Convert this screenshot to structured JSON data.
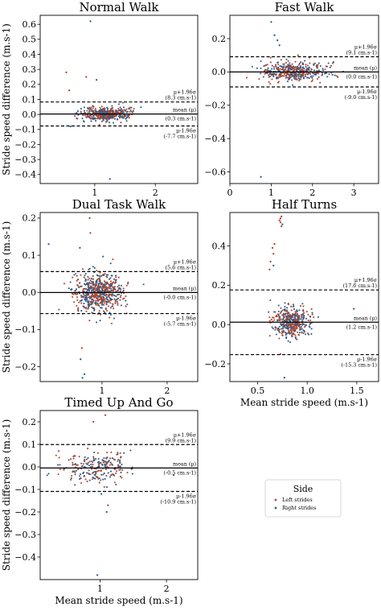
{
  "colors": {
    "left": "#b2472e",
    "right": "#2f5d8a",
    "line": "#000000",
    "text": "#000000"
  },
  "legend": {
    "title": "Side",
    "items": [
      {
        "label": "Left strides",
        "color_key": "left"
      },
      {
        "label": "Right strides",
        "color_key": "right"
      }
    ],
    "placement": "lower-right"
  },
  "chart_data": [
    {
      "type": "scatter",
      "title": "Normal Walk",
      "xlabel": "",
      "ylabel": "Stride speed difference (m.s-1)",
      "xlim": [
        0.1,
        2.7
      ],
      "ylim": [
        -0.46,
        0.66
      ],
      "xticks": [
        1,
        2
      ],
      "xtick_labels": [
        "1",
        "2"
      ],
      "yticks": [
        -0.4,
        -0.3,
        -0.2,
        -0.1,
        0.0,
        0.1,
        0.2,
        0.3,
        0.4,
        0.5,
        0.6
      ],
      "ytick_labels": [
        "−0.4",
        "−0.3",
        "−0.2",
        "−0.1",
        "0.0",
        "0.1",
        "0.2",
        "0.3",
        "0.4",
        "0.5",
        "0.6"
      ],
      "mean": 0.003,
      "upper_loa": 0.083,
      "lower_loa": -0.077,
      "annotations": {
        "upper_label": "μ+1.96σ",
        "upper_value": "(8.3 cm.s-1)",
        "mean_label": "mean (μ)",
        "mean_value": "(0.3 cm.s-1)",
        "lower_label": "μ-1.96σ",
        "lower_value": "(-7.7 cm.s-1)"
      },
      "cloud": {
        "x_mean": 1.2,
        "x_sd": 0.2,
        "y_sd": 0.022,
        "count": 440
      },
      "outliers": [
        {
          "x": 0.93,
          "y": 0.62,
          "side": "right"
        },
        {
          "x": 1.25,
          "y": -0.43,
          "side": "right"
        },
        {
          "x": 0.53,
          "y": 0.28,
          "side": "left"
        },
        {
          "x": 1.03,
          "y": 0.23,
          "side": "right"
        },
        {
          "x": 0.86,
          "y": 0.25,
          "side": "left"
        },
        {
          "x": 0.6,
          "y": -0.08,
          "side": "right"
        },
        {
          "x": 0.58,
          "y": 0.16,
          "side": "left"
        }
      ]
    },
    {
      "type": "scatter",
      "title": "Fast Walk",
      "xlabel": "",
      "ylabel": "",
      "xlim": [
        0.0,
        3.6
      ],
      "ylim": [
        -0.67,
        0.34
      ],
      "xticks": [
        0,
        1,
        2,
        3
      ],
      "xtick_labels": [
        "0",
        "1",
        "2",
        "3"
      ],
      "yticks": [
        -0.6,
        -0.4,
        -0.2,
        0.0,
        0.2
      ],
      "ytick_labels": [
        "−0.6",
        "−0.4",
        "−0.2",
        "0.0",
        "0.2"
      ],
      "mean": 0.0,
      "upper_loa": 0.091,
      "lower_loa": -0.09,
      "annotations": {
        "upper_label": "μ+1.96σ",
        "upper_value": "(9.1 cm.s-1)",
        "mean_label": "mean (μ)",
        "mean_value": "(0.0 cm.s-1)",
        "lower_label": "μ-1.96σ",
        "lower_value": "(-9.0 cm.s-1)"
      },
      "cloud": {
        "x_mean": 1.55,
        "x_sd": 0.38,
        "y_sd": 0.03,
        "count": 430
      },
      "outliers": [
        {
          "x": 1.0,
          "y": 0.3,
          "side": "right"
        },
        {
          "x": 0.75,
          "y": -0.63,
          "side": "right"
        },
        {
          "x": 1.15,
          "y": 0.19,
          "side": "right"
        },
        {
          "x": 1.2,
          "y": 0.16,
          "side": "right"
        },
        {
          "x": 1.08,
          "y": 0.22,
          "side": "right"
        },
        {
          "x": 1.65,
          "y": 0.1,
          "side": "left"
        }
      ]
    },
    {
      "type": "scatter",
      "title": "Dual Task Walk",
      "xlabel": "",
      "ylabel": "Stride speed difference (m.s-1)",
      "xlim": [
        0.05,
        2.47
      ],
      "ylim": [
        -0.24,
        0.215
      ],
      "xticks": [
        1,
        2
      ],
      "xtick_labels": [
        "1",
        "2"
      ],
      "yticks": [
        -0.2,
        -0.1,
        0.0,
        0.1,
        0.2
      ],
      "ytick_labels": [
        "−0.2",
        "−0.1",
        "0.0",
        "0.1",
        "0.2"
      ],
      "mean": -0.0003,
      "upper_loa": 0.056,
      "lower_loa": -0.057,
      "annotations": {
        "upper_label": "μ+1.96σ",
        "upper_value": "(5.6 cm.s-1)",
        "mean_label": "mean (μ)",
        "mean_value": "(-0.0 cm.s-1)",
        "lower_label": "μ-1.96σ",
        "lower_value": "(-5.7 cm.s-1)"
      },
      "cloud": {
        "x_mean": 0.95,
        "x_sd": 0.18,
        "y_sd": 0.027,
        "count": 620
      },
      "outliers": [
        {
          "x": 0.81,
          "y": 0.2,
          "side": "left"
        },
        {
          "x": 0.7,
          "y": -0.23,
          "side": "right"
        },
        {
          "x": 0.73,
          "y": -0.22,
          "side": "right"
        },
        {
          "x": 0.67,
          "y": -0.18,
          "side": "right"
        },
        {
          "x": 0.18,
          "y": 0.13,
          "side": "right"
        },
        {
          "x": 0.82,
          "y": 0.16,
          "side": "left"
        },
        {
          "x": 0.66,
          "y": 0.12,
          "side": "right"
        },
        {
          "x": 0.69,
          "y": -0.15,
          "side": "left"
        }
      ]
    },
    {
      "type": "scatter",
      "title": "Half Turns",
      "xlabel": "Mean stride speed (m.s-1)",
      "ylabel": "",
      "xlim": [
        0.22,
        1.72
      ],
      "ylim": [
        -0.29,
        0.57
      ],
      "xticks": [
        0.5,
        1.0,
        1.5
      ],
      "xtick_labels": [
        "0.5",
        "1.0",
        "1.5"
      ],
      "yticks": [
        -0.2,
        0.0,
        0.2,
        0.4
      ],
      "ytick_labels": [
        "−0.2",
        "0.0",
        "0.2",
        "0.4"
      ],
      "mean": 0.012,
      "upper_loa": 0.176,
      "lower_loa": -0.153,
      "annotations": {
        "upper_label": "μ+1.96σ",
        "upper_value": "(17.6 cm.s-1)",
        "mean_label": "mean (μ)",
        "mean_value": "(1.2 cm.s-1)",
        "lower_label": "μ-1.96σ",
        "lower_value": "(-15.3 cm.s-1)"
      },
      "cloud": {
        "x_mean": 0.84,
        "x_sd": 0.09,
        "y_sd": 0.035,
        "count": 420
      },
      "outliers": [
        {
          "x": 0.72,
          "y": 0.53,
          "side": "left"
        },
        {
          "x": 0.73,
          "y": 0.54,
          "side": "left"
        },
        {
          "x": 0.74,
          "y": 0.55,
          "side": "left"
        },
        {
          "x": 0.75,
          "y": 0.51,
          "side": "right"
        },
        {
          "x": 0.73,
          "y": 0.52,
          "side": "left"
        },
        {
          "x": 0.74,
          "y": 0.5,
          "side": "left"
        },
        {
          "x": 0.67,
          "y": 0.41,
          "side": "left"
        },
        {
          "x": 0.65,
          "y": 0.39,
          "side": "left"
        },
        {
          "x": 0.66,
          "y": 0.36,
          "side": "left"
        },
        {
          "x": 0.63,
          "y": 0.32,
          "side": "left"
        },
        {
          "x": 0.66,
          "y": 0.3,
          "side": "right"
        },
        {
          "x": 0.62,
          "y": 0.28,
          "side": "left"
        },
        {
          "x": 0.77,
          "y": -0.27,
          "side": "right"
        },
        {
          "x": 1.47,
          "y": 0.08,
          "side": "right"
        },
        {
          "x": 0.73,
          "y": -0.15,
          "side": "left"
        }
      ]
    },
    {
      "type": "scatter",
      "title": "Timed Up And Go",
      "xlabel": "Mean stride speed (m.s-1)",
      "ylabel": "Stride speed difference (m.s-1)",
      "xlim": [
        0.1,
        2.47
      ],
      "ylim": [
        -0.5,
        0.25
      ],
      "xticks": [
        1,
        2
      ],
      "xtick_labels": [
        "1",
        "2"
      ],
      "yticks": [
        -0.4,
        -0.3,
        -0.2,
        -0.1,
        0.0,
        0.1,
        0.2
      ],
      "ytick_labels": [
        "−0.4",
        "−0.3",
        "−0.2",
        "−0.1",
        "0.0",
        "0.1",
        "0.2"
      ],
      "mean": -0.005,
      "upper_loa": 0.099,
      "lower_loa": -0.109,
      "annotations": {
        "upper_label": "μ+1.96σ",
        "upper_value": "(9.9 cm.s-1)",
        "mean_label": "mean (μ)",
        "mean_value": "(-0.5 cm.s-1)",
        "lower_label": "μ-1.96σ",
        "lower_value": "(-10.9 cm.s-1)"
      },
      "cloud": {
        "x_mean": 0.95,
        "x_sd": 0.27,
        "y_sd": 0.035,
        "count": 230
      },
      "outliers": [
        {
          "x": 1.08,
          "y": 0.23,
          "side": "left"
        },
        {
          "x": 0.9,
          "y": 0.2,
          "side": "left"
        },
        {
          "x": 0.96,
          "y": -0.48,
          "side": "right"
        },
        {
          "x": 1.1,
          "y": -0.2,
          "side": "right"
        },
        {
          "x": 1.12,
          "y": -0.17,
          "side": "left"
        },
        {
          "x": 1.02,
          "y": -0.12,
          "side": "right"
        },
        {
          "x": 0.38,
          "y": 0.07,
          "side": "left"
        },
        {
          "x": 0.82,
          "y": -0.11,
          "side": "right"
        }
      ]
    }
  ]
}
